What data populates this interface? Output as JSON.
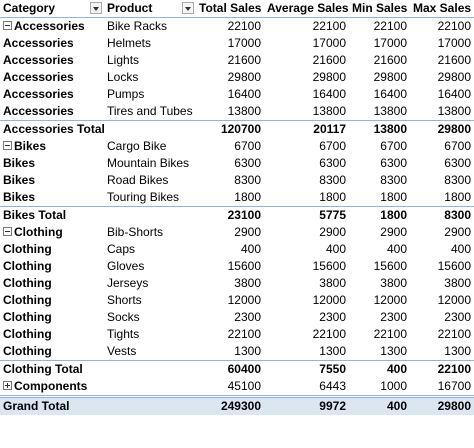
{
  "table": {
    "header": [
      "Category",
      "Product",
      "Total Sales",
      "Average Sales",
      "Min Sales",
      "Max Sales"
    ],
    "rows": [
      {
        "style": "first",
        "cells": [
          "Accessories",
          "Bike Racks",
          22100,
          22100,
          22100,
          22100
        ]
      },
      {
        "style": "item",
        "cells": [
          "Accessories",
          "Helmets",
          17000,
          17000,
          17000,
          17000
        ]
      },
      {
        "style": "item",
        "cells": [
          "Accessories",
          "Lights",
          21600,
          21600,
          21600,
          21600
        ]
      },
      {
        "style": "item",
        "cells": [
          "Accessories",
          "Locks",
          29800,
          29800,
          29800,
          29800
        ]
      },
      {
        "style": "item",
        "cells": [
          "Accessories",
          "Pumps",
          16400,
          16400,
          16400,
          16400
        ]
      },
      {
        "style": "item",
        "cells": [
          "Accessories",
          "Tires and Tubes",
          13800,
          13800,
          13800,
          13800
        ]
      },
      {
        "style": "total",
        "cells": [
          "Accessories Total",
          120700,
          20117,
          13800,
          29800
        ]
      },
      {
        "style": "first",
        "cells": [
          "Bikes",
          "Cargo Bike",
          6700,
          6700,
          6700,
          6700
        ]
      },
      {
        "style": "item",
        "cells": [
          "Bikes",
          "Mountain Bikes",
          6300,
          6300,
          6300,
          6300
        ]
      },
      {
        "style": "item",
        "cells": [
          "Bikes",
          "Road Bikes",
          8300,
          8300,
          8300,
          8300
        ]
      },
      {
        "style": "item",
        "cells": [
          "Bikes",
          "Touring Bikes",
          1800,
          1800,
          1800,
          1800
        ]
      },
      {
        "style": "total",
        "cells": [
          "Bikes Total",
          23100,
          5775,
          1800,
          8300
        ]
      },
      {
        "style": "first",
        "cells": [
          "Clothing",
          "Bib-Shorts",
          2900,
          2900,
          2900,
          2900
        ]
      },
      {
        "style": "item",
        "cells": [
          "Clothing",
          "Caps",
          400,
          400,
          400,
          400
        ]
      },
      {
        "style": "item",
        "cells": [
          "Clothing",
          "Gloves",
          15600,
          15600,
          15600,
          15600
        ]
      },
      {
        "style": "item",
        "cells": [
          "Clothing",
          "Jerseys",
          3800,
          3800,
          3800,
          3800
        ]
      },
      {
        "style": "item",
        "cells": [
          "Clothing",
          "Shorts",
          12000,
          12000,
          12000,
          12000
        ]
      },
      {
        "style": "item",
        "cells": [
          "Clothing",
          "Socks",
          2300,
          2300,
          2300,
          2300
        ]
      },
      {
        "style": "item",
        "cells": [
          "Clothing",
          "Tights",
          22100,
          22100,
          22100,
          22100
        ]
      },
      {
        "style": "item",
        "cells": [
          "Clothing",
          "Vests",
          1300,
          1300,
          1300,
          1300
        ]
      },
      {
        "style": "total",
        "cells": [
          "Clothing Total",
          60400,
          7550,
          400,
          22100
        ]
      },
      {
        "style": "collapsed",
        "cells": [
          "Components",
          45100,
          6443,
          1000,
          16700
        ]
      },
      {
        "style": "grand",
        "cells": [
          "Grand Total",
          249300,
          9972,
          400,
          29800
        ]
      }
    ]
  }
}
